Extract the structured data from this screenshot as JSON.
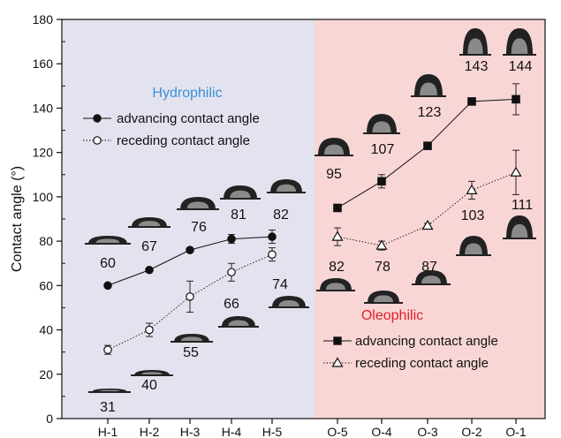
{
  "colors": {
    "hydrophilic_bg": "#e3e3f0",
    "oleophilic_bg": "#f9d6d6",
    "hydrophilic_text": "#3a8fd6",
    "oleophilic_text": "#e0202a",
    "line": "#111111",
    "droplet": "#222222"
  },
  "chart_data": [
    {
      "type": "line",
      "region": "Hydrophilic",
      "region_title": "Hydrophilic",
      "categories": [
        "H-1",
        "H-2",
        "H-3",
        "H-4",
        "H-5"
      ],
      "series": [
        {
          "name": "advancing contact angle",
          "marker": "filled-circle",
          "line_style": "solid",
          "values": [
            60,
            67,
            76,
            81,
            82
          ],
          "errors": [
            0,
            0,
            0,
            2,
            3
          ],
          "labels": [
            "60",
            "67",
            "76",
            "81",
            "82"
          ]
        },
        {
          "name": "receding contact angle",
          "marker": "open-circle",
          "line_style": "dotted",
          "values": [
            31,
            40,
            55,
            66,
            74
          ],
          "errors": [
            2,
            3,
            7,
            4,
            3
          ],
          "labels": [
            "31",
            "40",
            "55",
            "66",
            "74"
          ]
        }
      ],
      "legend_position": "upper-left"
    },
    {
      "type": "line",
      "region": "Oleophilic",
      "region_title": "Oleophilic",
      "categories": [
        "O-5",
        "O-4",
        "O-3",
        "O-2",
        "O-1"
      ],
      "series": [
        {
          "name": "advancing contact angle",
          "marker": "filled-square",
          "line_style": "solid",
          "values": [
            95,
            107,
            123,
            143,
            144
          ],
          "errors": [
            0,
            3,
            0,
            0,
            7
          ],
          "labels": [
            "95",
            "107",
            "123",
            "143",
            "144"
          ]
        },
        {
          "name": "receding contact angle",
          "marker": "open-triangle",
          "line_style": "dotted",
          "values": [
            82,
            78,
            87,
            103,
            111
          ],
          "errors": [
            4,
            2,
            1,
            4,
            10
          ],
          "labels": [
            "82",
            "78",
            "87",
            "103",
            "111"
          ]
        }
      ],
      "legend_position": "lower-right"
    }
  ],
  "axes": {
    "ylabel": "Contact angle (°)",
    "ylim": [
      0,
      180
    ],
    "yticks": [
      "0",
      "20",
      "40",
      "60",
      "80",
      "100",
      "120",
      "140",
      "160",
      "180"
    ]
  }
}
